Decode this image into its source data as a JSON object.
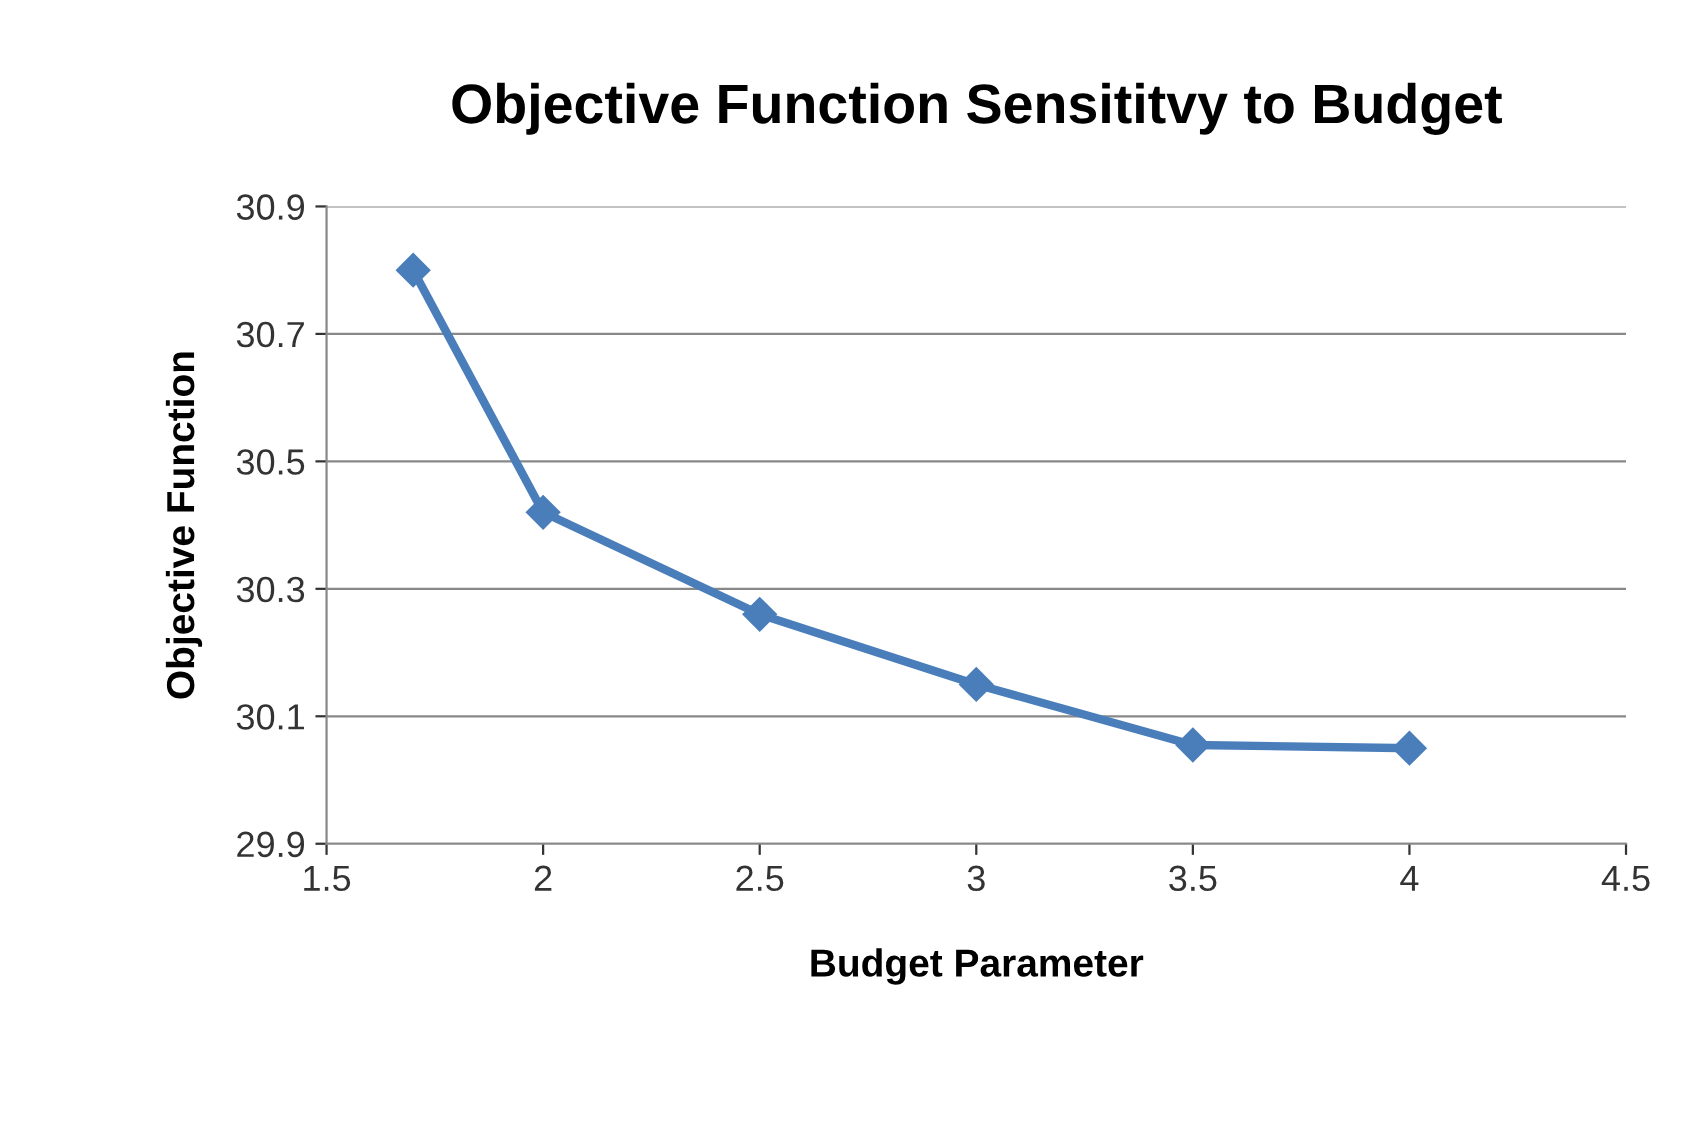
{
  "chart_data": {
    "type": "line",
    "title": "Objective Function Sensititvy to Budget",
    "xlabel": "Budget Parameter",
    "ylabel": "Objective Function",
    "x": [
      1.7,
      2,
      2.5,
      3,
      3.5,
      4
    ],
    "series": [
      {
        "color": "#4a7ebb",
        "values": [
          30.8,
          30.42,
          30.26,
          30.15,
          30.055,
          30.05
        ]
      }
    ],
    "xlim": [
      1.5,
      4.5
    ],
    "xticks": [
      1.5,
      2,
      2.5,
      3,
      3.5,
      4,
      4.5
    ],
    "ylim": [
      29.9,
      30.9
    ],
    "yticks": [
      29.9,
      30.1,
      30.3,
      30.5,
      30.7,
      30.9
    ],
    "grid": "y",
    "marker": "diamond",
    "line_style": "solid"
  }
}
